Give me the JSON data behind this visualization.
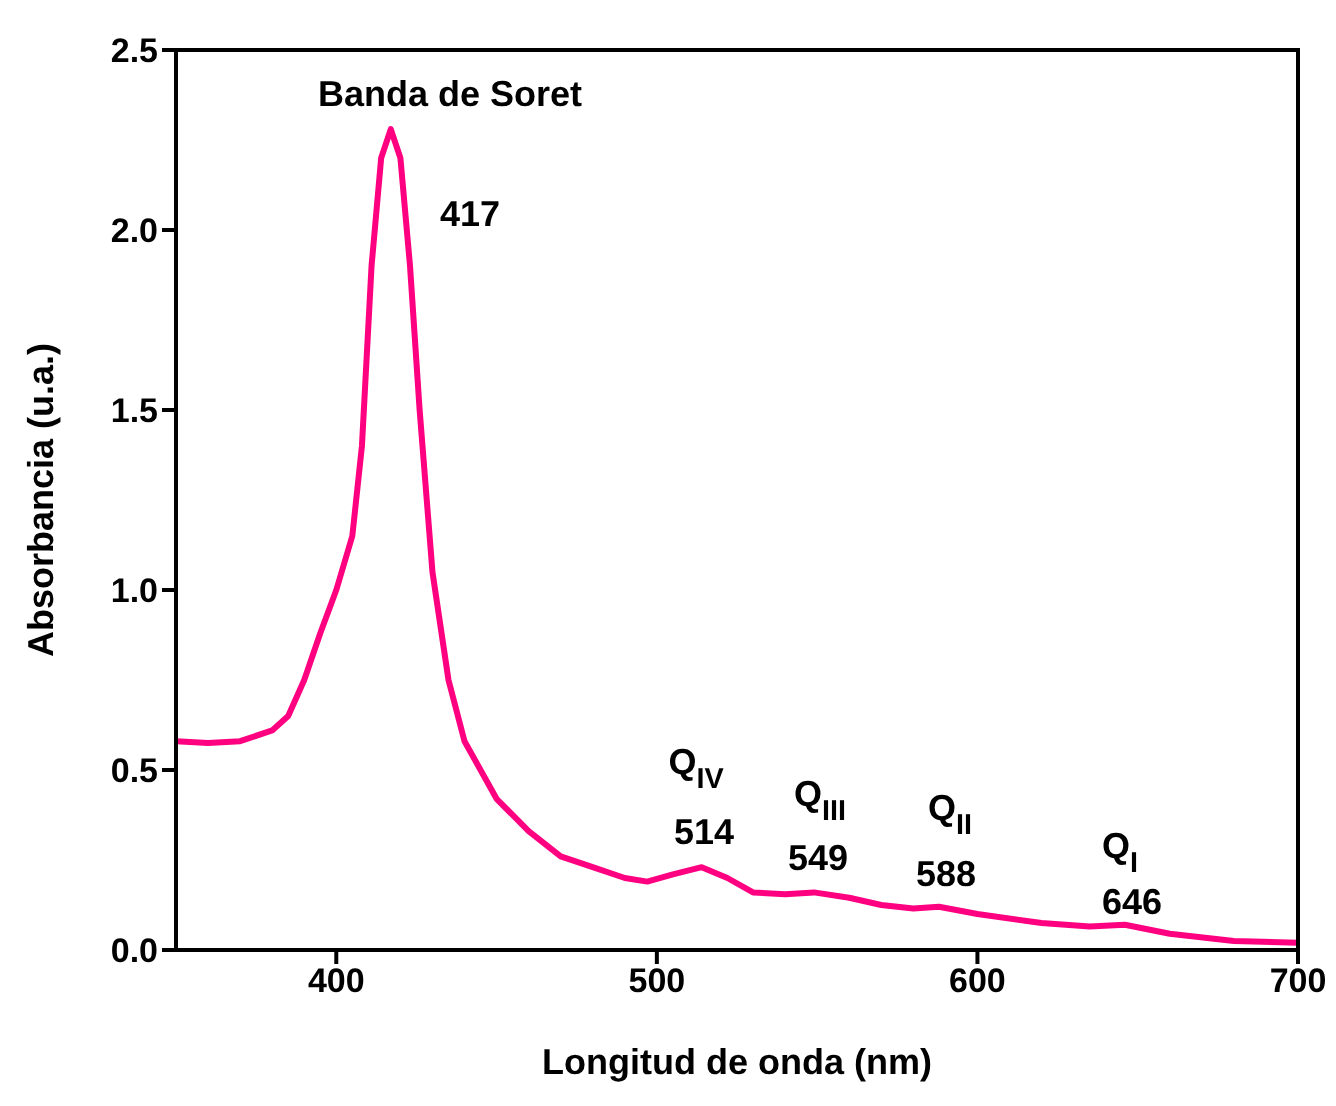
{
  "chart_data": {
    "type": "line",
    "xlabel": "Longitud de onda (nm)",
    "ylabel": "Absorbancia (u.a.)",
    "x": [
      350,
      360,
      370,
      380,
      385,
      390,
      395,
      400,
      405,
      408,
      411,
      414,
      417,
      420,
      423,
      426,
      430,
      435,
      440,
      450,
      460,
      470,
      480,
      490,
      497,
      505,
      514,
      522,
      530,
      540,
      549,
      560,
      570,
      580,
      588,
      600,
      620,
      635,
      646,
      660,
      680,
      700
    ],
    "series": [
      {
        "color": "#ff0080",
        "values": [
          0.58,
          0.575,
          0.58,
          0.61,
          0.65,
          0.75,
          0.88,
          1.0,
          1.15,
          1.4,
          1.9,
          2.2,
          2.28,
          2.2,
          1.9,
          1.5,
          1.05,
          0.75,
          0.58,
          0.42,
          0.33,
          0.26,
          0.23,
          0.2,
          0.19,
          0.21,
          0.23,
          0.2,
          0.16,
          0.155,
          0.16,
          0.145,
          0.125,
          0.115,
          0.12,
          0.1,
          0.075,
          0.065,
          0.07,
          0.045,
          0.025,
          0.02
        ]
      }
    ],
    "xlim": [
      350,
      700
    ],
    "xticks": [
      400,
      500,
      600,
      700
    ],
    "ylim": [
      0,
      2.5
    ],
    "yticks": [
      {
        "value": 0,
        "label": "0.0"
      },
      {
        "value": 0.5,
        "label": "0.5"
      },
      {
        "value": 1,
        "label": "1.0"
      },
      {
        "value": 1.5,
        "label": "1.5"
      },
      {
        "value": 2,
        "label": "2.0"
      },
      {
        "value": 2.5,
        "label": "2.5"
      }
    ],
    "grid": false,
    "legend": false,
    "marker": "none",
    "line_style": "solid",
    "annotations": [
      "Banda de Soret",
      "417",
      "Q$_{IV}$",
      "514",
      "Q$_{III}$",
      "549",
      "Q$_{II}$",
      "588",
      "Q$_{I}$",
      "646"
    ]
  }
}
